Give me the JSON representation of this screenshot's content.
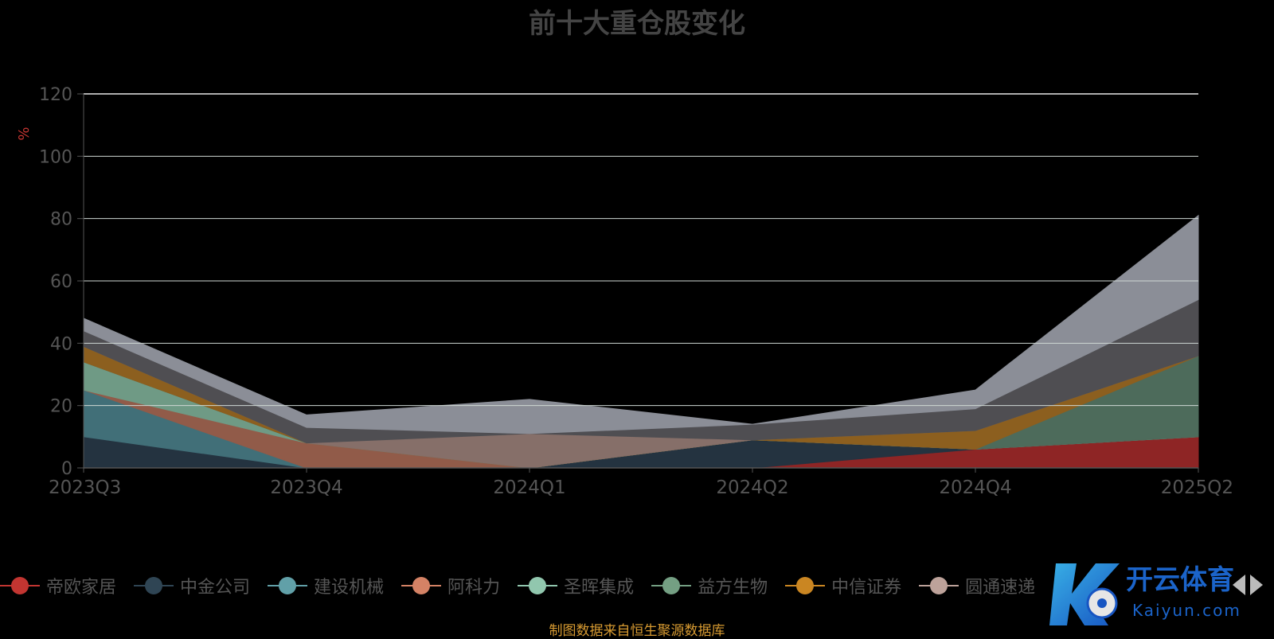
{
  "chart_data": {
    "type": "area",
    "title": "前十大重仓股变化",
    "ylabel": "%",
    "ylim": [
      0,
      120
    ],
    "yticks": [
      0,
      20,
      40,
      60,
      80,
      100,
      120
    ],
    "x": [
      "2023Q3",
      "2023Q4",
      "2024Q1",
      "2024Q2",
      "2024Q4",
      "2025Q2"
    ],
    "series": [
      {
        "name": "帝欧家居",
        "color": "#8e2525",
        "values": [
          0,
          0,
          0,
          0,
          6,
          10
        ]
      },
      {
        "name": "中金公司",
        "color": "#243340",
        "values": [
          10,
          0,
          0,
          9,
          0,
          0
        ]
      },
      {
        "name": "建设机械",
        "color": "#416f78",
        "values": [
          15,
          0,
          0,
          0,
          0,
          0
        ]
      },
      {
        "name": "阿科力",
        "color": "#915b49",
        "values": [
          0,
          8,
          0,
          0,
          0,
          0
        ]
      },
      {
        "name": "圣晖集成",
        "color": "#6f9a85",
        "values": [
          9,
          0,
          0,
          0,
          0,
          0
        ]
      },
      {
        "name": "益方生物",
        "color": "#4d6b5b",
        "values": [
          0,
          0,
          0,
          0,
          0,
          26
        ]
      },
      {
        "name": "中信证券",
        "color": "#8c5f1f",
        "values": [
          5,
          0,
          0,
          0,
          6,
          0
        ]
      },
      {
        "name": "圆通速递",
        "color": "#866f69",
        "values": [
          0,
          0,
          11,
          0,
          0,
          0
        ]
      },
      {
        "name": "",
        "color": "#4f4e52",
        "values": [
          5,
          5,
          0,
          5,
          7,
          18
        ]
      },
      {
        "name": "",
        "color": "#8b8e97",
        "values": [
          4,
          4,
          11,
          0,
          6,
          27
        ]
      }
    ]
  },
  "legend": {
    "items": [
      {
        "label": "帝欧家居",
        "color": "#c23531"
      },
      {
        "label": "中金公司",
        "color": "#2f4554"
      },
      {
        "label": "建设机械",
        "color": "#61a0a8"
      },
      {
        "label": "阿科力",
        "color": "#d48265"
      },
      {
        "label": "圣晖集成",
        "color": "#91c7ae"
      },
      {
        "label": "益方生物",
        "color": "#749f83"
      },
      {
        "label": "中信证券",
        "color": "#ca8622"
      },
      {
        "label": "圆通速递",
        "color": "#bda29a"
      }
    ]
  },
  "source_note": "制图数据来自恒生聚源数据库",
  "watermark": {
    "brand": "开云体育",
    "domain": "Kaiyun.com"
  }
}
